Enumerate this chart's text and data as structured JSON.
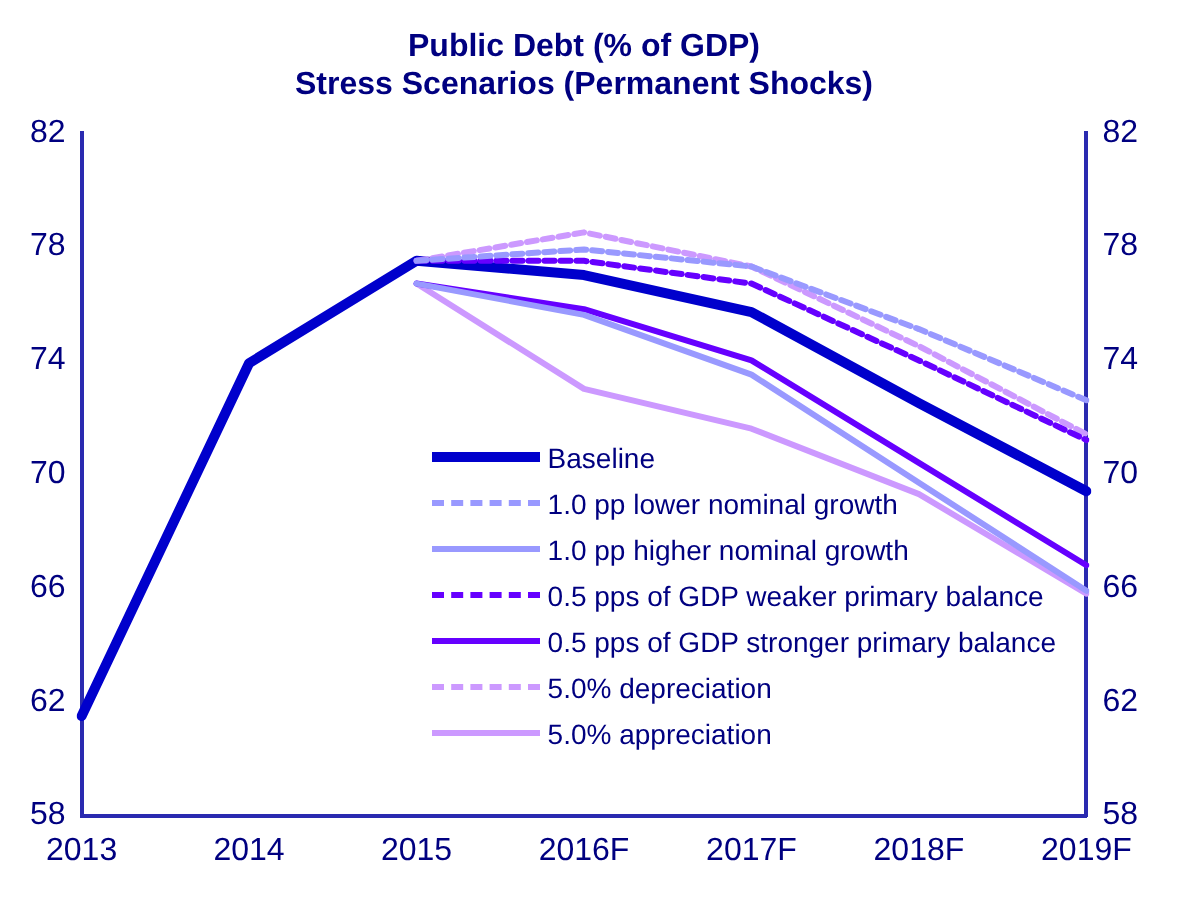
{
  "chart_data": {
    "type": "line",
    "title": "Public Debt (% of GDP)\nStress Scenarios (Permanent Shocks)",
    "categories": [
      "2013",
      "2014",
      "2015",
      "2016F",
      "2017F",
      "2018F",
      "2019F"
    ],
    "series": [
      {
        "name": "Baseline",
        "color": "#0000cc",
        "line_style": "solid",
        "values": [
          61.5,
          73.9,
          77.5,
          77.0,
          75.7,
          72.5,
          69.4
        ]
      },
      {
        "name": "1.0 pp lower nominal growth",
        "color": "#9999ff",
        "line_style": "dashed",
        "values": [
          null,
          null,
          77.5,
          77.9,
          77.3,
          75.1,
          72.6
        ]
      },
      {
        "name": "1.0 pp higher nominal growth",
        "color": "#9999ff",
        "line_style": "solid",
        "values": [
          null,
          null,
          76.7,
          75.6,
          73.5,
          69.7,
          65.9
        ]
      },
      {
        "name": "0.5 pps of GDP weaker primary balance",
        "color": "#6600ff",
        "line_style": "dashed",
        "values": [
          null,
          null,
          77.5,
          77.5,
          76.7,
          74.0,
          71.2
        ]
      },
      {
        "name": "0.5 pps of GDP stronger primary balance",
        "color": "#6600ff",
        "line_style": "solid",
        "values": [
          null,
          null,
          76.7,
          75.8,
          74.0,
          70.4,
          66.8
        ]
      },
      {
        "name": "5.0% depreciation",
        "color": "#cc99ff",
        "line_style": "dashed",
        "values": [
          null,
          null,
          77.5,
          78.5,
          77.3,
          74.5,
          71.4
        ]
      },
      {
        "name": "5.0% appreciation",
        "color": "#cc99ff",
        "line_style": "solid",
        "values": [
          null,
          null,
          76.7,
          73.0,
          71.6,
          69.3,
          65.8
        ]
      }
    ],
    "ylim": [
      58,
      82
    ],
    "yticks": [
      58,
      62,
      66,
      70,
      74,
      78,
      82
    ],
    "y2lim": [
      58,
      82
    ],
    "y2ticks": [
      58,
      62,
      66,
      70,
      74,
      78,
      82
    ],
    "grid": false,
    "legend": "bottom right",
    "marker": "none"
  }
}
